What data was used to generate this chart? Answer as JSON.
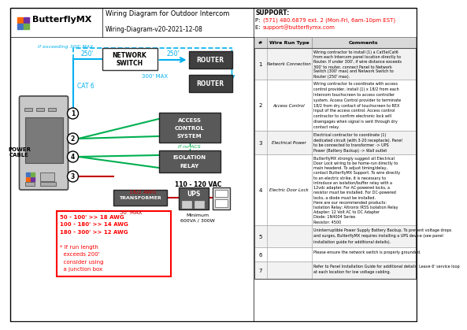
{
  "title": "Wiring Diagram for Outdoor Intercom",
  "subtitle": "Wiring-Diagram-v20-2021-12-08",
  "logo_text": "ButterflyMX",
  "support_label": "SUPPORT:",
  "support_phone": "P: (571) 480.6879 ext. 2 (Mon-Fri, 6am-10pm EST)",
  "support_email": "E: support@butterflymx.com",
  "bg_color": "#ffffff",
  "colors": {
    "cyan": "#00b0f0",
    "green": "#00b050",
    "dark_red": "#c00000",
    "red_text": "#ff0000",
    "logo_orange": "#ff6600",
    "logo_purple": "#7030a0",
    "logo_blue": "#4472c4",
    "logo_green": "#70ad47",
    "box_dark": "#404040",
    "box_mid": "#595959",
    "table_header_bg": "#d9d9d9",
    "row_alt": "#f2f2f2"
  },
  "table_rows": [
    {
      "num": "1",
      "type": "Network Connection",
      "lines": [
        "Wiring contractor to install (1) a Cat5e/Cat6",
        "from each Intercom panel location directly to",
        "Router. If under 300', if wire distance exceeds",
        "300' to router, connect Panel to Network",
        "Switch (300' max) and Network Switch to",
        "Router (250' max)."
      ]
    },
    {
      "num": "2",
      "type": "Access Control",
      "lines": [
        "Wiring contractor to coordinate with access",
        "control provider, install (1) x 18/2 from each",
        "Intercom touchscreen to access controller",
        "system. Access Control provider to terminate",
        "18/2 from dry contact of touchscreen to REX",
        "Input of the access control. Access control",
        "contractor to confirm electronic lock will",
        "disengages when signal is sent through dry",
        "contact relay."
      ]
    },
    {
      "num": "3",
      "type": "Electrical Power",
      "lines": [
        "Electrical contractor to coordinate (1)",
        "dedicated circuit (with 3-20 receptacle). Panel",
        "to be connected to transformer -> UPS",
        "Power (Battery Backup) -> Wall outlet"
      ]
    },
    {
      "num": "4",
      "type": "Electric Door Lock",
      "lines": [
        "ButterflyMX strongly suggest all Electrical",
        "Door Lock wiring to be home-run directly to",
        "main headend. To adjust timing/delay,",
        "contact ButterflyMX Support. To wire directly",
        "to an electric strike, it is necessary to",
        "introduce an isolation/buffer relay with a",
        "12vdc adapter. For AC-powered locks, a",
        "resistor must be installed. For DC-powered",
        "locks, a diode must be installed.",
        "Here are our recommended products:",
        "Isolation Relay: Altronix IR5S Isolation Relay",
        "Adapter: 12 Volt AC to DC Adapter",
        "Diode: 1N4004 Series",
        "Resistor: 4500"
      ]
    },
    {
      "num": "5",
      "type": "",
      "lines": [
        "Uninterruptible Power Supply Battery Backup. To prevent voltage drops",
        "and surges, ButterflyMX requires installing a UPS device (see panel",
        "installation guide for additional details)."
      ]
    },
    {
      "num": "6",
      "type": "",
      "lines": [
        "Please ensure the network switch is properly grounded."
      ]
    },
    {
      "num": "7",
      "type": "",
      "lines": [
        "Refer to Panel Installation Guide for additional details. Leave 6' service loop",
        "at each location for low voltage cabling."
      ]
    }
  ]
}
